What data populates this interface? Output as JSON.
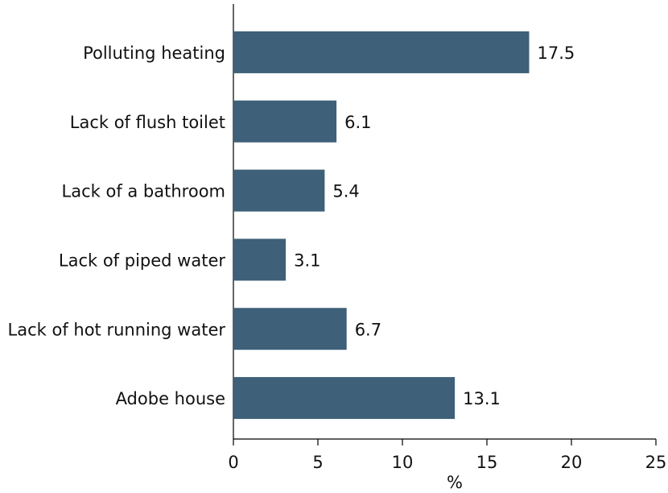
{
  "chart_data": {
    "type": "bar",
    "orientation": "horizontal",
    "categories": [
      "Polluting heating",
      "Lack of flush toilet",
      "Lack of a bathroom",
      "Lack of piped water",
      "Lack of hot running water",
      "Adobe house"
    ],
    "values": [
      17.5,
      6.1,
      5.4,
      3.1,
      6.7,
      13.1
    ],
    "color": "#3e6079",
    "x_label": "%",
    "xlim": [
      0,
      25
    ],
    "xticks": [
      0,
      5,
      10,
      15,
      20,
      25
    ]
  }
}
